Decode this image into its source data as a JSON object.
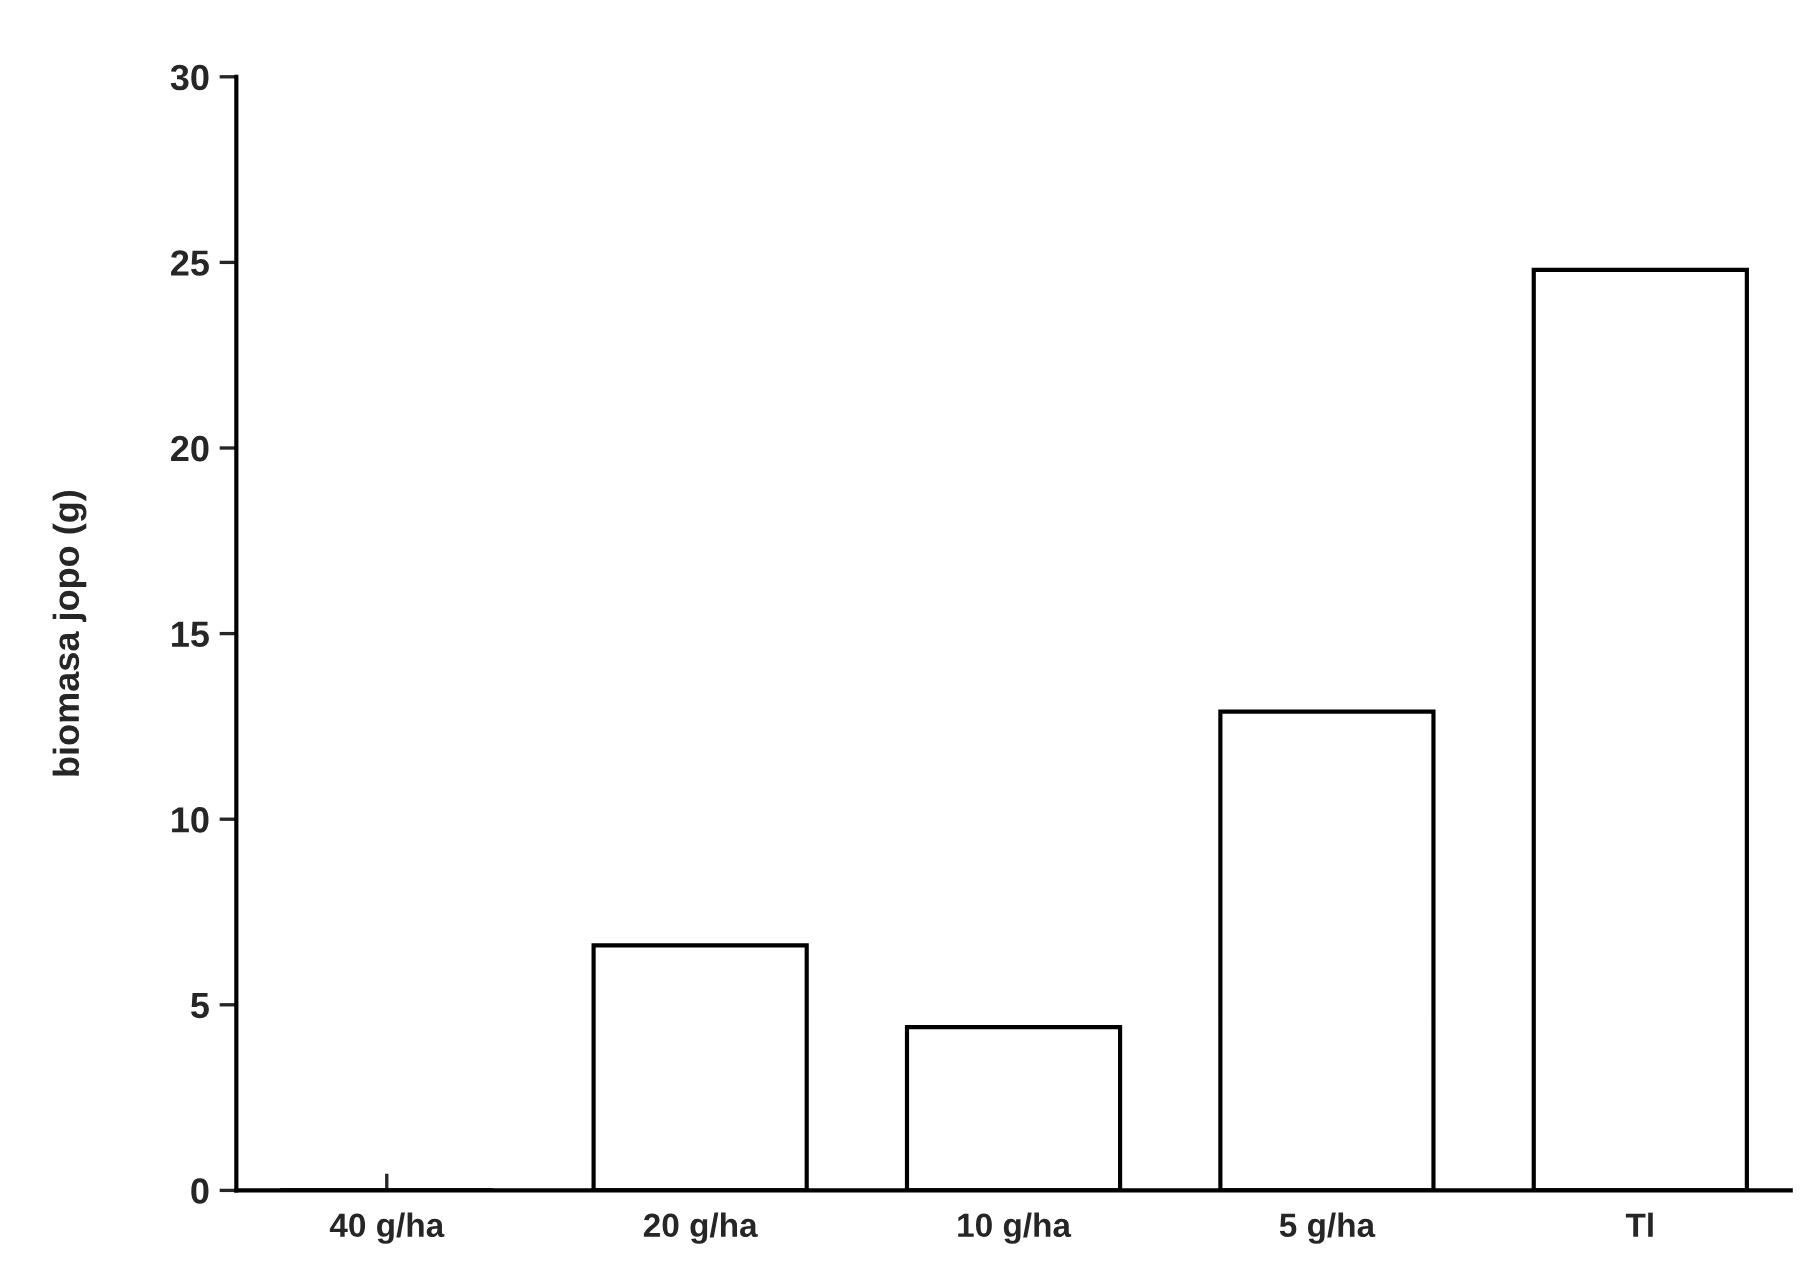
{
  "chart_data": {
    "type": "bar",
    "ylabel": "biomasa jopo (g)",
    "categories": [
      "40 g/ha",
      "20 g/ha",
      "10 g/ha",
      "5 g/ha",
      "Tl"
    ],
    "values": [
      0,
      6.6,
      4.4,
      12.9,
      24.8
    ],
    "color": "#ffffff",
    "ylim": [
      0,
      30
    ],
    "yticks": [
      0,
      5,
      10,
      15,
      20,
      25,
      30
    ],
    "grid": false
  }
}
